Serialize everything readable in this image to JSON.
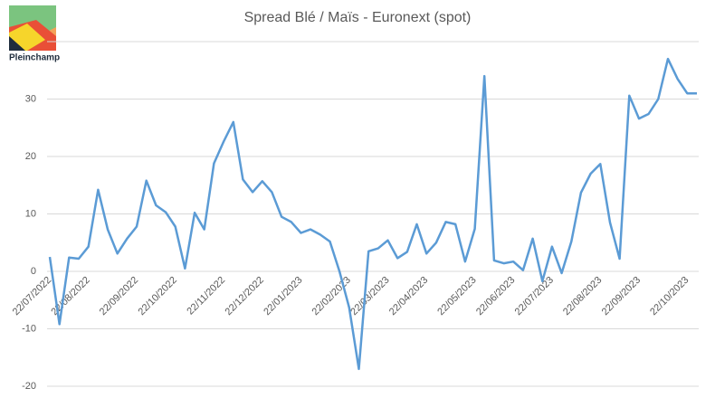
{
  "logo": "Pleinchamp",
  "chart_data": {
    "type": "line",
    "title": "Spread Blé / Maïs - Euronext (spot)",
    "categories": [
      "22/07/2022",
      null,
      null,
      null,
      "22/08/2022",
      null,
      null,
      null,
      null,
      "22/09/2022",
      null,
      null,
      null,
      "22/10/2022",
      null,
      null,
      null,
      null,
      "22/11/2022",
      null,
      null,
      null,
      "22/12/2022",
      null,
      null,
      null,
      "22/01/2023",
      null,
      null,
      null,
      null,
      "22/02/2023",
      null,
      null,
      null,
      "22/03/2023",
      null,
      null,
      null,
      "22/04/2023",
      null,
      null,
      null,
      null,
      "22/05/2023",
      null,
      null,
      null,
      "22/06/2023",
      null,
      null,
      null,
      "22/07/2023",
      null,
      null,
      null,
      null,
      "22/08/2023",
      null,
      null,
      null,
      "22/09/2023",
      null,
      null,
      null,
      null,
      "22/10/2023",
      null
    ],
    "series": [
      {
        "name": "Spread",
        "color": "#5b9bd5",
        "values": [
          2.5,
          -9.2,
          2.4,
          2.2,
          4.3,
          14.2,
          7.3,
          3.1,
          5.7,
          7.8,
          15.8,
          11.5,
          10.3,
          7.8,
          0.5,
          10.2,
          7.3,
          18.8,
          22.6,
          26,
          16,
          13.8,
          15.7,
          13.8,
          9.5,
          8.6,
          6.7,
          7.3,
          6.4,
          5.2,
          0,
          -6.3,
          -17,
          3.5,
          4,
          5.4,
          2.3,
          3.4,
          8.2,
          3.1,
          5,
          8.6,
          8.2,
          1.7,
          7.4,
          34,
          1.9,
          1.4,
          1.7,
          0.2,
          5.7,
          -1.7,
          4.3,
          -0.3,
          5.2,
          13.7,
          17,
          18.7,
          8.5,
          2.2,
          30.6,
          26.6,
          27.4,
          30,
          37,
          33.5,
          31,
          31
        ]
      }
    ],
    "ylim": [
      -20,
      40
    ],
    "yticks": [
      -20,
      -10,
      0,
      10,
      20,
      30
    ],
    "grid": true
  }
}
